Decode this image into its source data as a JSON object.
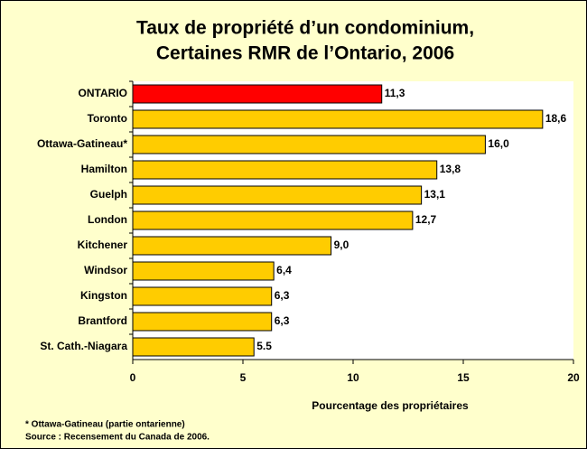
{
  "chart_data": {
    "type": "hbar",
    "title": [
      "Taux de propriété d’un condominium,",
      "Certaines RMR de l’Ontario, 2006"
    ],
    "categories": [
      "ONTARIO",
      "Toronto",
      "Ottawa-Gatineau*",
      "Hamilton",
      "Guelph",
      "London",
      "Kitchener",
      "Windsor",
      "Kingston",
      "Brantford",
      "St. Cath.-Niagara"
    ],
    "values": [
      11.3,
      18.6,
      16.0,
      13.8,
      13.1,
      12.7,
      9.0,
      6.4,
      6.3,
      6.3,
      5.5
    ],
    "value_labels": [
      "11,3",
      "18,6",
      "16,0",
      "13,8",
      "13,1",
      "12,7",
      "9,0",
      "6,4",
      "6,3",
      "6,3",
      "5.5"
    ],
    "colors": [
      "#ff0000",
      "#ffcc00",
      "#ffcc00",
      "#ffcc00",
      "#ffcc00",
      "#ffcc00",
      "#ffcc00",
      "#ffcc00",
      "#ffcc00",
      "#ffcc00",
      "#ffcc00"
    ],
    "xlim": [
      0,
      20
    ],
    "xticks": [
      0,
      5,
      10,
      15,
      20
    ],
    "xlabel": "Pourcentage des propriétaires",
    "notes": [
      "* Ottawa-Gatineau (partie ontarienne)",
      "Source : Recensement du Canada de 2006."
    ]
  }
}
